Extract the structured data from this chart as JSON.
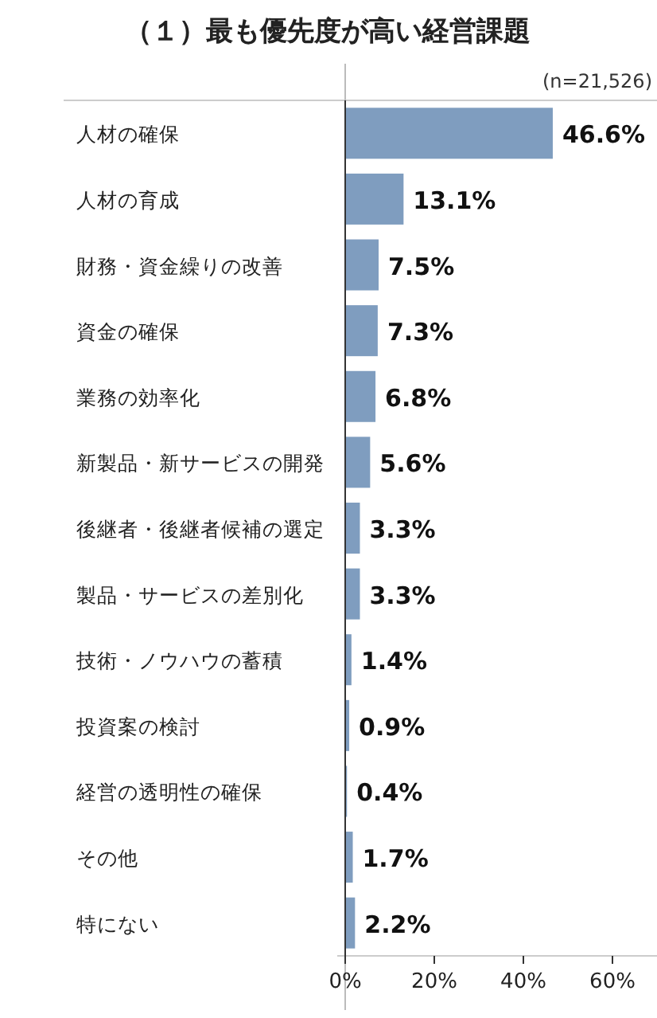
{
  "chart_data": {
    "type": "bar",
    "orientation": "horizontal",
    "title": "（１）最も優先度が高い経営課題",
    "annotations": [
      "(n=21,526)"
    ],
    "categories": [
      "人材の確保",
      "人材の育成",
      "財務・資金繰りの改善",
      "資金の確保",
      "業務の効率化",
      "新製品・新サービスの開発",
      "後継者・後継者候補の選定",
      "製品・サービスの差別化",
      "技術・ノウハウの蓄積",
      "投資案の検討",
      "経営の透明性の確保",
      "その他",
      "特にない"
    ],
    "values": [
      46.6,
      13.1,
      7.5,
      7.3,
      6.8,
      5.6,
      3.3,
      3.3,
      1.4,
      0.9,
      0.4,
      1.7,
      2.2
    ],
    "value_labels": [
      "46.6%",
      "13.1%",
      "7.5%",
      "7.3%",
      "6.8%",
      "5.6%",
      "3.3%",
      "3.3%",
      "1.4%",
      "0.9%",
      "0.4%",
      "1.7%",
      "2.2%"
    ],
    "color": "#7f9dbf",
    "xlim": [
      0,
      70
    ],
    "xticks": [
      {
        "value": 0,
        "label": "0%"
      },
      {
        "value": 20,
        "label": "20%"
      },
      {
        "value": 40,
        "label": "40%"
      },
      {
        "value": 60,
        "label": "60%"
      }
    ],
    "grid": false
  }
}
